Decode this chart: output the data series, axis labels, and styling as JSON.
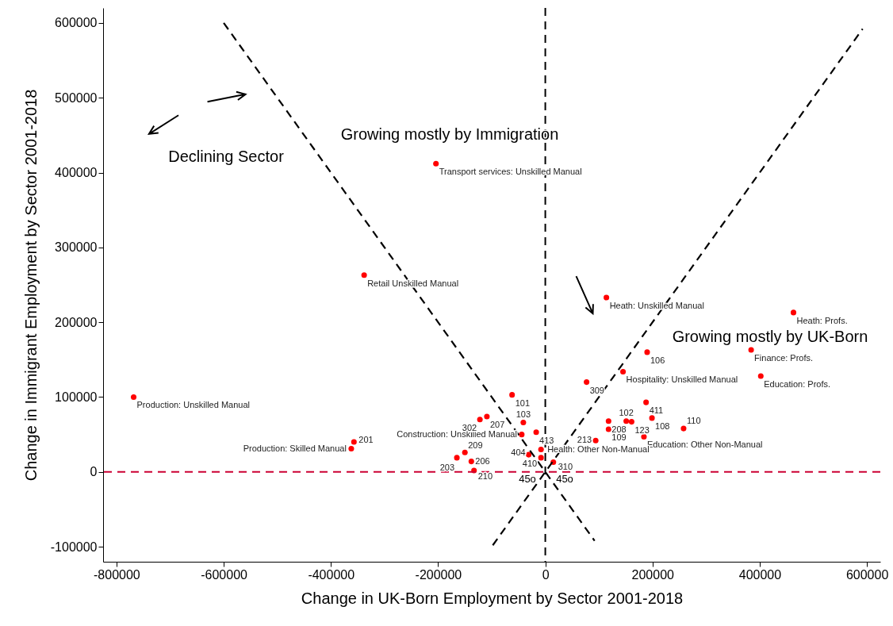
{
  "chart_data": {
    "type": "scatter",
    "xlabel": "Change in UK-Born Employment by Sector 2001-2018",
    "ylabel": "Change in Immigrant Employment by Sector 2001-2018",
    "xlim": [
      -825000,
      625000
    ],
    "ylim": [
      -120000,
      620000
    ],
    "xticks": [
      -800000,
      -600000,
      -400000,
      -200000,
      0,
      200000,
      400000,
      600000
    ],
    "yticks": [
      -100000,
      0,
      100000,
      200000,
      300000,
      400000,
      500000,
      600000
    ],
    "marker": "circle",
    "annotations": [
      "Growing mostly by Immigration",
      "Declining Sector",
      "Growing mostly by UK-Born",
      "45o",
      "45o"
    ],
    "ref_lines": [
      {
        "axis": "x",
        "value": 0,
        "color": "#000000",
        "line_style": "dashed"
      },
      {
        "axis": "y",
        "value": 0,
        "color": "#cc0033",
        "line_style": "dashed"
      }
    ],
    "series": [
      {
        "name": "Transport services: Unskilled Manual",
        "color": "#ff0000",
        "x": [
          -204000
        ],
        "values": [
          412000
        ]
      },
      {
        "name": "Retail Unskilled Manual",
        "color": "#ff0000",
        "x": [
          -338000
        ],
        "values": [
          263000
        ]
      },
      {
        "name": "Production: Unskilled Manual",
        "color": "#ff0000",
        "x": [
          -768000
        ],
        "values": [
          100000
        ]
      },
      {
        "name": "Heath: Unskilled Manual",
        "color": "#ff0000",
        "x": [
          114000
        ],
        "values": [
          233000
        ]
      },
      {
        "name": "Heath: Profs.",
        "color": "#ff0000",
        "x": [
          463000
        ],
        "values": [
          213000
        ]
      },
      {
        "name": "106",
        "color": "#ff0000",
        "x": [
          190000
        ],
        "values": [
          160000
        ]
      },
      {
        "name": "Finance: Profs.",
        "color": "#ff0000",
        "x": [
          384000
        ],
        "values": [
          163000
        ]
      },
      {
        "name": "Hospitality: Unskilled Manual",
        "color": "#ff0000",
        "x": [
          145000
        ],
        "values": [
          134000
        ]
      },
      {
        "name": "Education: Profs.",
        "color": "#ff0000",
        "x": [
          402000
        ],
        "values": [
          128000
        ]
      },
      {
        "name": "309",
        "color": "#ff0000",
        "x": [
          77000
        ],
        "values": [
          120000
        ]
      },
      {
        "name": "411",
        "color": "#ff0000",
        "x": [
          188000
        ],
        "values": [
          93000
        ]
      },
      {
        "name": "108",
        "color": "#ff0000",
        "x": [
          199000
        ],
        "values": [
          72000
        ]
      },
      {
        "name": "208",
        "color": "#ff0000",
        "x": [
          118000
        ],
        "values": [
          68000
        ]
      },
      {
        "name": "109",
        "color": "#ff0000",
        "x": [
          118000
        ],
        "values": [
          57000
        ]
      },
      {
        "name": "102",
        "color": "#ff0000",
        "x": [
          151000
        ],
        "values": [
          68000
        ]
      },
      {
        "name": "123",
        "color": "#ff0000",
        "x": [
          161000
        ],
        "values": [
          67000
        ]
      },
      {
        "name": "Education: Other Non-Manual",
        "color": "#ff0000",
        "x": [
          184000
        ],
        "values": [
          47000
        ]
      },
      {
        "name": "110",
        "color": "#ff0000",
        "x": [
          258000
        ],
        "values": [
          58000
        ]
      },
      {
        "name": "213",
        "color": "#ff0000",
        "x": [
          94000
        ],
        "values": [
          42000
        ]
      },
      {
        "name": "103",
        "color": "#ff0000",
        "x": [
          -41000
        ],
        "values": [
          66000
        ]
      },
      {
        "name": "413",
        "color": "#ff0000",
        "x": [
          -17000
        ],
        "values": [
          53000
        ]
      },
      {
        "name": "Construction: Unskilled Manual",
        "color": "#ff0000",
        "x": [
          -44000
        ],
        "values": [
          50000
        ]
      },
      {
        "name": "404",
        "color": "#ff0000",
        "x": [
          -31000
        ],
        "values": [
          23000
        ]
      },
      {
        "name": "Health: Other Non-Manual",
        "color": "#ff0000",
        "x": [
          -8000
        ],
        "values": [
          30000
        ]
      },
      {
        "name": "410",
        "color": "#ff0000",
        "x": [
          -8000
        ],
        "values": [
          19000
        ]
      },
      {
        "name": "310",
        "color": "#ff0000",
        "x": [
          15000
        ],
        "values": [
          13000
        ]
      },
      {
        "name": "101",
        "color": "#ff0000",
        "x": [
          -62000
        ],
        "values": [
          103000
        ]
      },
      {
        "name": "207",
        "color": "#ff0000",
        "x": [
          -109000
        ],
        "values": [
          74000
        ]
      },
      {
        "name": "302",
        "color": "#ff0000",
        "x": [
          -122000
        ],
        "values": [
          70000
        ]
      },
      {
        "name": "201",
        "color": "#ff0000",
        "x": [
          -357000
        ],
        "values": [
          40000
        ]
      },
      {
        "name": "Production: Skilled Manual",
        "color": "#ff0000",
        "x": [
          -362000
        ],
        "values": [
          31000
        ]
      },
      {
        "name": "209",
        "color": "#ff0000",
        "x": [
          -150000
        ],
        "values": [
          26000
        ]
      },
      {
        "name": "203",
        "color": "#ff0000",
        "x": [
          -165000
        ],
        "values": [
          19000
        ]
      },
      {
        "name": "206",
        "color": "#ff0000",
        "x": [
          -138000
        ],
        "values": [
          14000
        ]
      },
      {
        "name": "210",
        "color": "#ff0000",
        "x": [
          -133000
        ],
        "values": [
          2000
        ]
      },
      {
        "type": "line",
        "color": "#000000",
        "line_style": "dashed",
        "marker": "none",
        "x": [
          -600000,
          92000
        ],
        "values": [
          600000,
          -92000
        ]
      },
      {
        "type": "line",
        "color": "#000000",
        "line_style": "dashed",
        "marker": "none",
        "x": [
          -98000,
          592000
        ],
        "values": [
          -98000,
          592000
        ]
      }
    ]
  }
}
